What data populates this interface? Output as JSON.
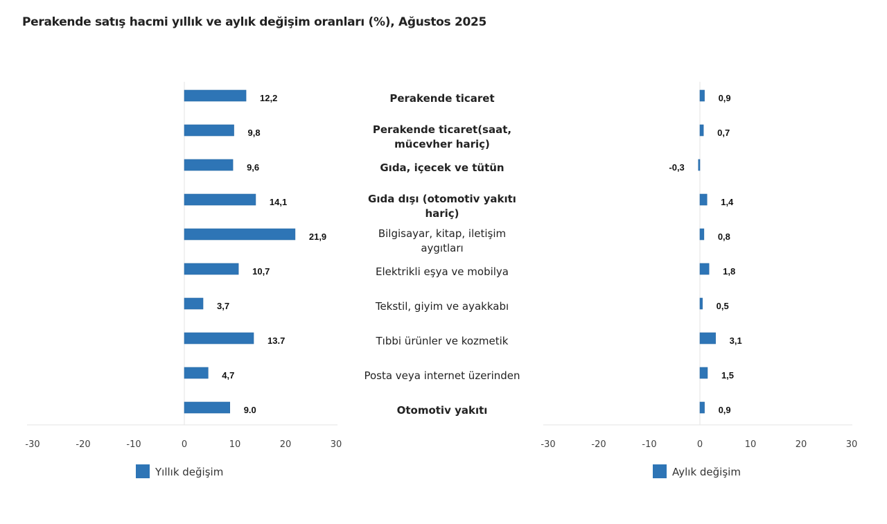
{
  "title": "Perakende satış hacmi yıllık ve aylık değişim oranları (%), Ağustos 2025",
  "colors": {
    "bar": "#2e75b6",
    "grid": "#e3e3e3",
    "text": "#222222"
  },
  "chart_data": [
    {
      "type": "bar",
      "orientation": "horizontal",
      "name": "annual",
      "title": "Perakende satış hacmi yıllık ve aylık değişim oranları (%), Ağustos 2025",
      "xlabel": "",
      "ylabel": "",
      "xlim": [
        -30,
        30
      ],
      "xticks": [
        "-30",
        "-20",
        "-10",
        "0",
        "10",
        "20",
        "30"
      ],
      "legend": {
        "label": "Yıllık değişim",
        "placement": "bottom"
      },
      "categories": [
        "Perakende ticaret",
        "Perakende ticaret(saat, mücevher hariç)",
        "Gıda, içecek ve tütün",
        "Gıda dışı (otomotiv yakıtı hariç)",
        "Bilgisayar, kitap, iletişim aygıtları",
        "Elektrikli eşya ve mobilya",
        "Tekstil, giyim ve ayakkabı",
        "Tıbbi ürünler ve kozmetik",
        "Posta veya internet üzerinden",
        "Otomotiv yakıtı"
      ],
      "values": [
        12.2,
        9.8,
        9.6,
        14.1,
        21.9,
        10.7,
        3.7,
        13.7,
        4.7,
        9.0
      ],
      "labels": [
        "12,2",
        "9,8",
        "9,6",
        "14,1",
        "21,9",
        "10,7",
        "3,7",
        "13.7",
        "4,7",
        "9.0"
      ]
    },
    {
      "type": "bar",
      "orientation": "horizontal",
      "name": "monthly",
      "xlabel": "",
      "ylabel": "",
      "xlim": [
        -30,
        30
      ],
      "xticks": [
        "-30",
        "-20",
        "-10",
        "0",
        "10",
        "20",
        "30"
      ],
      "legend": {
        "label": "Aylık değişim",
        "placement": "bottom"
      },
      "values": [
        0.9,
        0.7,
        -0.3,
        1.4,
        0.8,
        1.8,
        0.5,
        3.1,
        1.5,
        0.9
      ],
      "labels": [
        "0,9",
        "0,7",
        "-0,3",
        "1,4",
        "0,8",
        "1,8",
        "0,5",
        "3,1",
        "1,5",
        "0,9"
      ]
    }
  ],
  "category_labels": [
    {
      "lines": [
        "Perakende ticaret"
      ],
      "bold": true
    },
    {
      "lines": [
        "Perakende ticaret(saat,",
        "mücevher hariç)"
      ],
      "bold": true
    },
    {
      "lines": [
        "Gıda, içecek ve tütün"
      ],
      "bold": true
    },
    {
      "lines": [
        "Gıda dışı (otomotiv yakıtı",
        "hariç)"
      ],
      "bold": true
    },
    {
      "lines": [
        "Bilgisayar, kitap, iletişim",
        "aygıtları"
      ],
      "bold": false
    },
    {
      "lines": [
        "Elektrikli eşya ve mobilya"
      ],
      "bold": false
    },
    {
      "lines": [
        "Tekstil, giyim ve ayakkabı"
      ],
      "bold": false
    },
    {
      "lines": [
        "Tıbbi ürünler ve kozmetik"
      ],
      "bold": false
    },
    {
      "lines": [
        "Posta veya internet üzerinden"
      ],
      "bold": false
    },
    {
      "lines": [
        "Otomotiv yakıtı"
      ],
      "bold": true
    }
  ]
}
